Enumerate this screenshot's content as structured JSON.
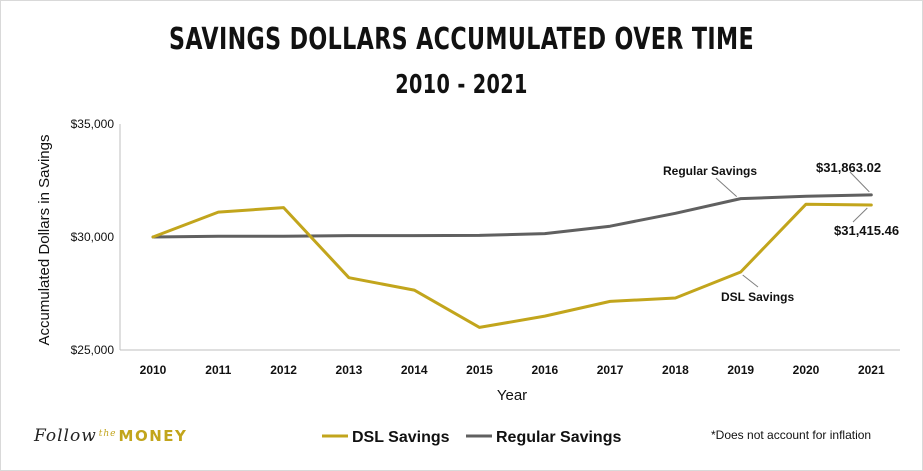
{
  "chart_data": {
    "type": "line",
    "title": "SAVINGS DOLLARS ACCUMULATED OVER TIME",
    "subtitle": "2010 - 2021",
    "xlabel": "Year",
    "ylabel": "Accumulated Dollars in Savings",
    "ylim": [
      25000,
      35000
    ],
    "y_ticks": [
      25000,
      30000,
      35000
    ],
    "y_tick_labels": [
      "$25,000",
      "$30,000",
      "$35,000"
    ],
    "x": [
      "2010",
      "2011",
      "2012",
      "2013",
      "2014",
      "2015",
      "2016",
      "2017",
      "2018",
      "2019",
      "2020",
      "2021"
    ],
    "grid": false,
    "legend_position": "bottom",
    "series": [
      {
        "name": "DSL Savings",
        "color": "#c2a51c",
        "values": [
          30000,
          31100,
          31300,
          28200,
          27650,
          26000,
          26500,
          27150,
          27300,
          28450,
          31450,
          31415.46
        ]
      },
      {
        "name": "Regular Savings",
        "color": "#606060",
        "values": [
          30000,
          30030,
          30030,
          30060,
          30060,
          30070,
          30150,
          30480,
          31050,
          31700,
          31800,
          31863.02
        ]
      }
    ],
    "annotations": [
      {
        "text": "Regular Savings",
        "series": "Regular Savings",
        "x": "2019"
      },
      {
        "text": "$31,863.02",
        "series": "Regular Savings",
        "x": "2021"
      },
      {
        "text": "$31,415.46",
        "series": "DSL Savings",
        "x": "2021"
      },
      {
        "text": "DSL Savings",
        "series": "DSL Savings",
        "x": "2019"
      }
    ]
  },
  "branding": {
    "follow": "Follow",
    "the": "the",
    "money": "MONEY"
  },
  "footnote": "*Does not account for inflation"
}
